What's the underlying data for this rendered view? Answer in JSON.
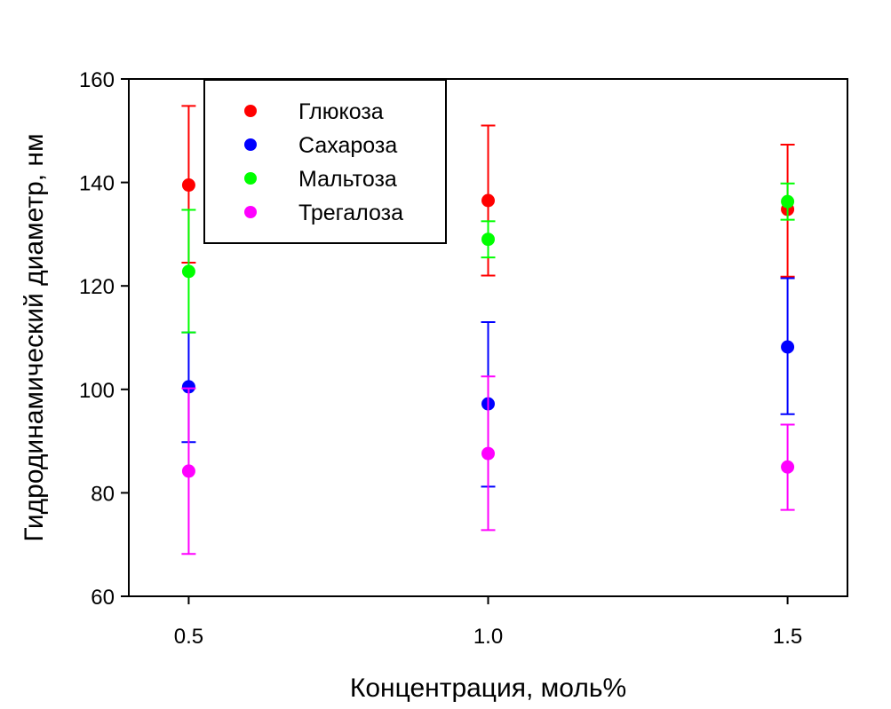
{
  "chart_data": {
    "type": "scatter",
    "xlabel": "Концентрация, моль%",
    "ylabel": "Гидродинамический диаметр, нм",
    "xlim": [
      0.4,
      1.6
    ],
    "ylim": [
      60,
      160
    ],
    "xticks": [
      "0.5",
      "1.0",
      "1.5"
    ],
    "xtick_values": [
      0.5,
      1.0,
      1.5
    ],
    "yticks": [
      "60",
      "80",
      "100",
      "120",
      "140",
      "160"
    ],
    "ytick_values": [
      60,
      80,
      100,
      120,
      140,
      160
    ],
    "grid": false,
    "legend_position": "top-left",
    "error_bars": true,
    "series": [
      {
        "name": "Глюкоза",
        "color": "#ff0000",
        "x": [
          0.5,
          1.0,
          1.5
        ],
        "y": [
          139.5,
          136.5,
          134.8
        ],
        "err_low": [
          124.5,
          122.0,
          121.8
        ],
        "err_high": [
          154.8,
          151.0,
          147.3
        ]
      },
      {
        "name": "Сахароза",
        "color": "#0000ff",
        "x": [
          0.5,
          1.0,
          1.5
        ],
        "y": [
          100.5,
          97.2,
          108.2
        ],
        "err_low": [
          89.8,
          81.2,
          95.2
        ],
        "err_high": [
          111.0,
          113.0,
          121.5
        ]
      },
      {
        "name": "Мальтоза",
        "color": "#00ff00",
        "x": [
          0.5,
          1.0,
          1.5
        ],
        "y": [
          122.8,
          129.0,
          136.3
        ],
        "err_low": [
          111.0,
          125.5,
          132.8
        ],
        "err_high": [
          134.7,
          132.5,
          139.8
        ]
      },
      {
        "name": "Трегалоза",
        "color": "#ff00ff",
        "x": [
          0.5,
          1.0,
          1.5
        ],
        "y": [
          84.2,
          87.6,
          85.0
        ],
        "err_low": [
          68.2,
          72.8,
          76.7
        ],
        "err_high": [
          100.2,
          102.5,
          93.2
        ]
      }
    ]
  }
}
